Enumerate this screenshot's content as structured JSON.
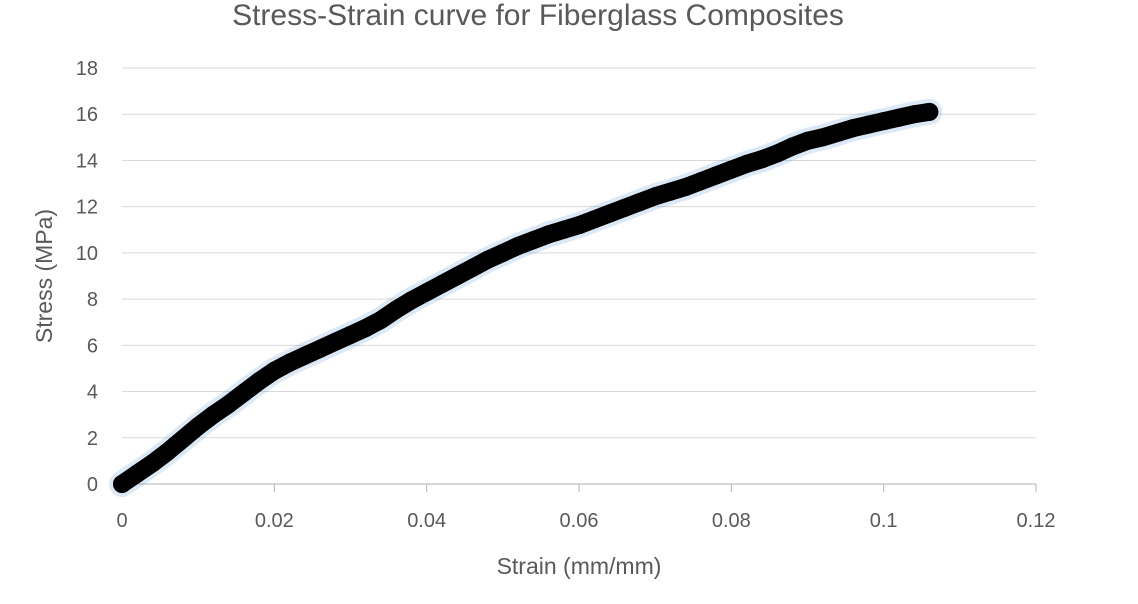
{
  "chart_data": {
    "type": "line",
    "title": "Stress-Strain curve for Fiberglass Composites",
    "xlabel": "Strain (mm/mm)",
    "ylabel": "Stress (MPa)",
    "xlim": [
      0,
      0.12
    ],
    "ylim": [
      0,
      18
    ],
    "xticks": [
      "0",
      "0.02",
      "0.04",
      "0.06",
      "0.08",
      "0.1",
      "0.12"
    ],
    "yticks": [
      "0",
      "2",
      "4",
      "6",
      "8",
      "10",
      "12",
      "14",
      "16",
      "18"
    ],
    "grid": "horizontal",
    "legend": "none",
    "colors": {
      "series_line": "#000000",
      "underlay": "#5b9bd5",
      "grid": "#d9d9d9",
      "text": "#595959"
    },
    "series": [
      {
        "x": [
          0,
          0.002,
          0.004,
          0.006,
          0.008,
          0.01,
          0.012,
          0.014,
          0.016,
          0.018,
          0.02,
          0.022,
          0.024,
          0.026,
          0.028,
          0.03,
          0.032,
          0.034,
          0.036,
          0.038,
          0.04,
          0.042,
          0.044,
          0.046,
          0.048,
          0.05,
          0.052,
          0.054,
          0.056,
          0.058,
          0.06,
          0.062,
          0.064,
          0.066,
          0.068,
          0.07,
          0.072,
          0.074,
          0.076,
          0.078,
          0.08,
          0.082,
          0.084,
          0.086,
          0.088,
          0.09,
          0.092,
          0.094,
          0.096,
          0.098,
          0.1,
          0.102,
          0.104,
          0.106
        ],
        "values": [
          0,
          0.45,
          0.9,
          1.4,
          1.95,
          2.5,
          3.0,
          3.45,
          3.95,
          4.45,
          4.9,
          5.25,
          5.55,
          5.85,
          6.15,
          6.45,
          6.75,
          7.1,
          7.55,
          7.95,
          8.3,
          8.65,
          9.0,
          9.35,
          9.7,
          10.0,
          10.3,
          10.55,
          10.8,
          11.0,
          11.2,
          11.45,
          11.7,
          11.95,
          12.2,
          12.45,
          12.65,
          12.85,
          13.1,
          13.35,
          13.6,
          13.85,
          14.05,
          14.3,
          14.6,
          14.85,
          15.0,
          15.2,
          15.4,
          15.55,
          15.7,
          15.85,
          16.0,
          16.1
        ]
      }
    ]
  }
}
